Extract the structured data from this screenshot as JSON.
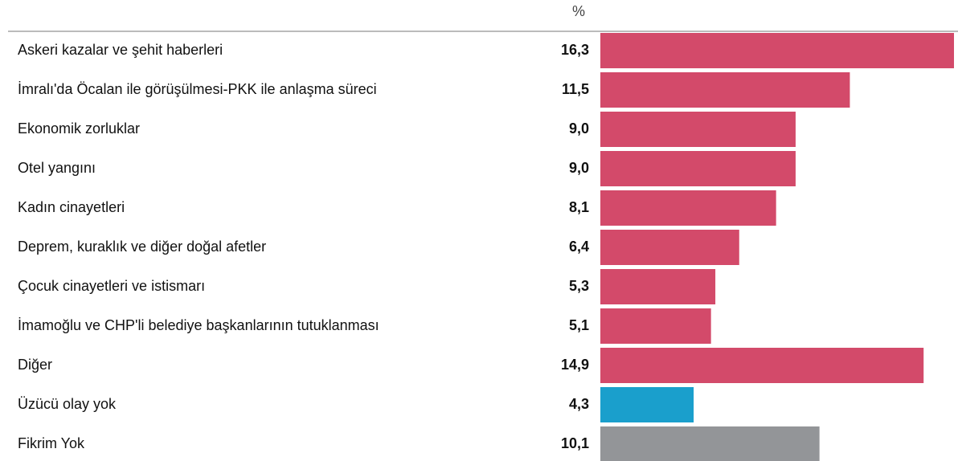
{
  "chart_data": {
    "type": "bar",
    "orientation": "horizontal",
    "unit_label": "%",
    "categories": [
      "Askeri kazalar ve şehit haberleri",
      "İmralı'da Öcalan ile görüşülmesi-PKK ile anlaşma süreci",
      "Ekonomik zorluklar",
      "Otel yangını",
      "Kadın cinayetleri",
      "Deprem, kuraklık ve diğer doğal afetler",
      "Çocuk cinayetleri ve istismarı",
      "İmamoğlu ve CHP'li belediye başkanlarının tutuklanması",
      "Diğer",
      "Üzücü olay yok",
      "Fikrim Yok"
    ],
    "values": [
      16.3,
      11.5,
      9.0,
      9.0,
      8.1,
      6.4,
      5.3,
      5.1,
      14.9,
      4.3,
      10.1
    ],
    "value_labels": [
      "16,3",
      "11,5",
      "9,0",
      "9,0",
      "8,1",
      "6,4",
      "5,3",
      "5,1",
      "14,9",
      "4,3",
      "10,1"
    ],
    "colors": [
      "#d34a6a",
      "#d34a6a",
      "#d34a6a",
      "#d34a6a",
      "#d34a6a",
      "#d34a6a",
      "#d34a6a",
      "#d34a6a",
      "#d34a6a",
      "#1a9fcc",
      "#939598"
    ]
  }
}
